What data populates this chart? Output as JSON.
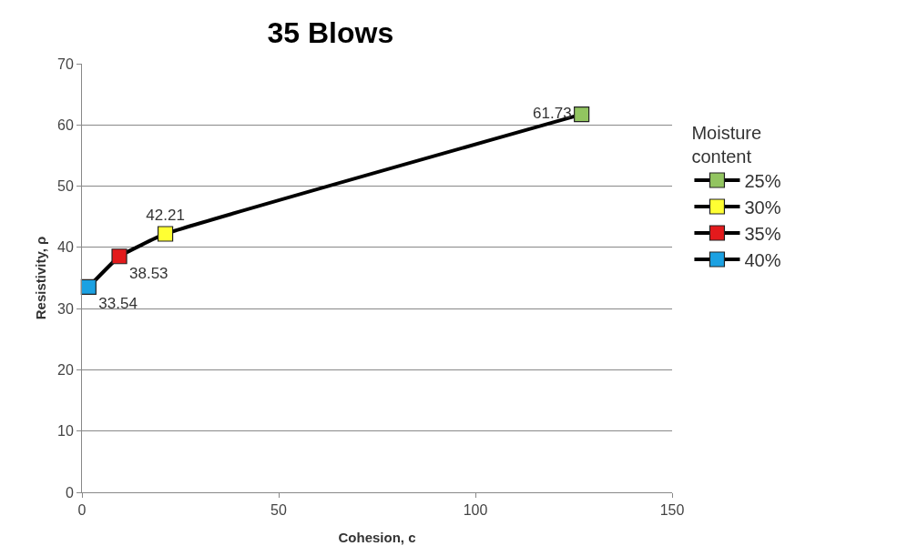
{
  "chart_data": {
    "type": "scatter",
    "title": "35 Blows",
    "xlabel": "Cohesion, c",
    "ylabel": "Resistivity, ρ",
    "legend_title": "Moisture content",
    "legend": "right",
    "grid": "y",
    "marker": "square",
    "data_labels": true,
    "xlim": [
      0,
      150
    ],
    "xticks": [
      0,
      50,
      100,
      150
    ],
    "ylim": [
      0,
      70
    ],
    "yticks": [
      0,
      10,
      20,
      30,
      40,
      50,
      60,
      70
    ],
    "series": [
      {
        "type": "line",
        "color": "#000000",
        "marker": "none",
        "x": [
          1.7,
          9.5,
          21.2,
          127
        ],
        "values": [
          33.54,
          38.53,
          42.21,
          61.73
        ],
        "value_labels": [
          null,
          null,
          null,
          null
        ]
      },
      {
        "name": "25%",
        "color": "#92c560",
        "x": [
          127
        ],
        "values": [
          61.73
        ]
      },
      {
        "name": "30%",
        "color": "#ffff33",
        "x": [
          21.2
        ],
        "values": [
          42.21
        ]
      },
      {
        "name": "35%",
        "color": "#e31a1c",
        "x": [
          9.5
        ],
        "values": [
          38.53
        ]
      },
      {
        "name": "40%",
        "color": "#1ba1e2",
        "x": [
          1.7
        ],
        "values": [
          33.54
        ]
      }
    ]
  }
}
